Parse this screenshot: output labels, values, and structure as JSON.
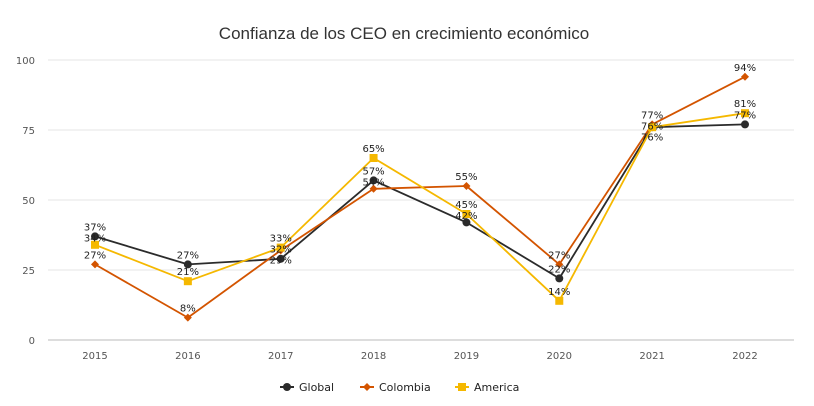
{
  "chart_data": {
    "type": "line",
    "title": "Confianza de los CEO en crecimiento económico",
    "xlabel": "",
    "ylabel": "",
    "categories": [
      "2015",
      "2016",
      "2017",
      "2018",
      "2019",
      "2020",
      "2021",
      "2022"
    ],
    "ylim": [
      0,
      100
    ],
    "yticks": [
      "0",
      "25",
      "50",
      "75",
      "100"
    ],
    "grid": "horizontal",
    "legend_position": "bottom-center",
    "series": [
      {
        "name": "Global",
        "color": "#2b2b2b",
        "marker": "circle",
        "values": [
          37,
          27,
          29,
          57,
          42,
          22,
          76,
          77
        ],
        "labels": [
          "37%",
          "27%",
          "29%",
          "57%",
          "42%",
          "22%",
          "76%",
          "77%"
        ]
      },
      {
        "name": "Colombia",
        "color": "#d35400",
        "marker": "diamond",
        "values": [
          27,
          8,
          32,
          54,
          55,
          27,
          77,
          94
        ],
        "labels": [
          "27%",
          "8%",
          "32%",
          "54%",
          "55%",
          "27%",
          "77%",
          "94%"
        ]
      },
      {
        "name": "America",
        "color": "#f5b800",
        "marker": "square",
        "values": [
          34,
          21,
          33,
          65,
          45,
          14,
          76,
          81
        ],
        "labels": [
          "34%",
          "21%",
          "33%",
          "65%",
          "45%",
          "14%",
          "76%",
          "81%"
        ]
      }
    ]
  }
}
